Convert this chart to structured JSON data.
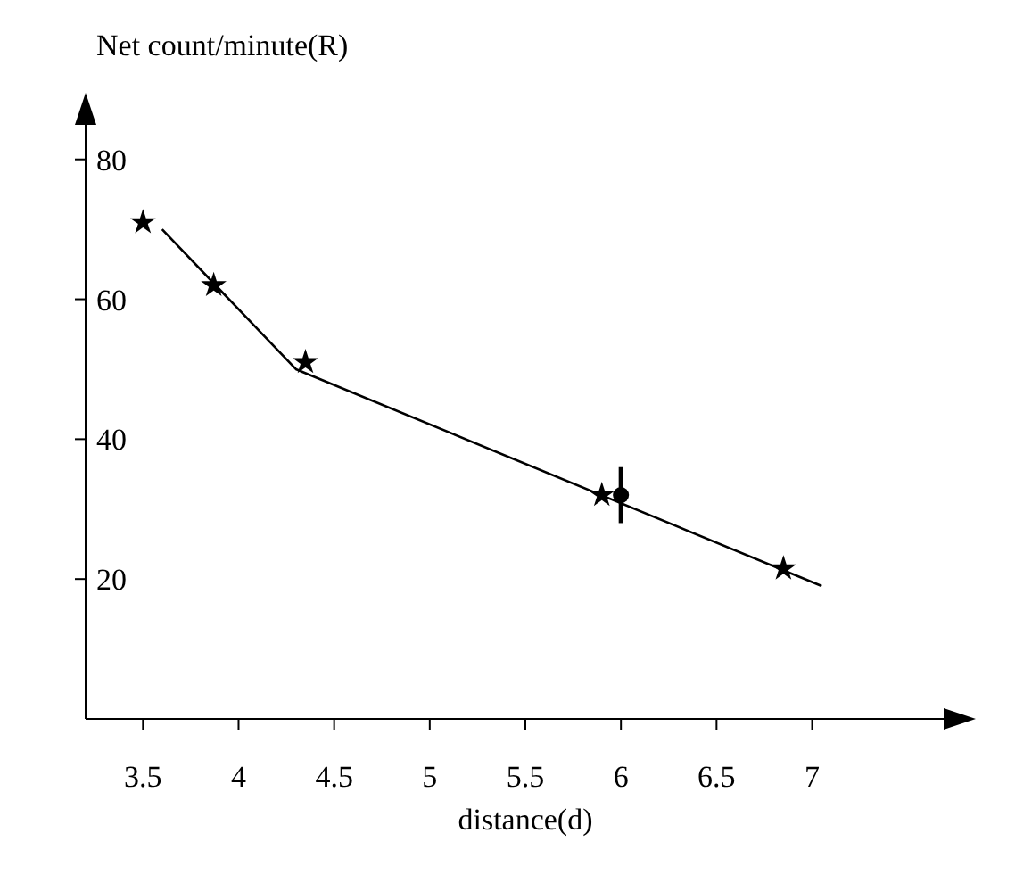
{
  "chart_data": {
    "type": "scatter",
    "xlabel": "distance(d)",
    "ylabel": "Net count/minute(R)",
    "xlim": [
      3.2,
      7.8
    ],
    "ylim": [
      0,
      88
    ],
    "xticks": [
      3.5,
      4,
      4.5,
      5,
      5.5,
      6,
      6.5,
      7
    ],
    "yticks": [
      20,
      40,
      60,
      80
    ],
    "grid": false,
    "legend": false,
    "marker": "star",
    "series": [
      {
        "color": "#000000",
        "x": [
          3.5,
          3.87,
          4.35,
          5.9,
          6.85
        ],
        "values": [
          71,
          62,
          51,
          32,
          21.5
        ]
      },
      {
        "type": "line",
        "color": "#000000",
        "marker": "none",
        "line_style": "solid",
        "x": [
          3.6,
          4.3,
          7.05
        ],
        "values": [
          70,
          50,
          19
        ]
      },
      {
        "color": "#000000",
        "marker": "circle",
        "x": [
          6
        ],
        "values": [
          32
        ],
        "errors": [
          4
        ]
      }
    ]
  }
}
